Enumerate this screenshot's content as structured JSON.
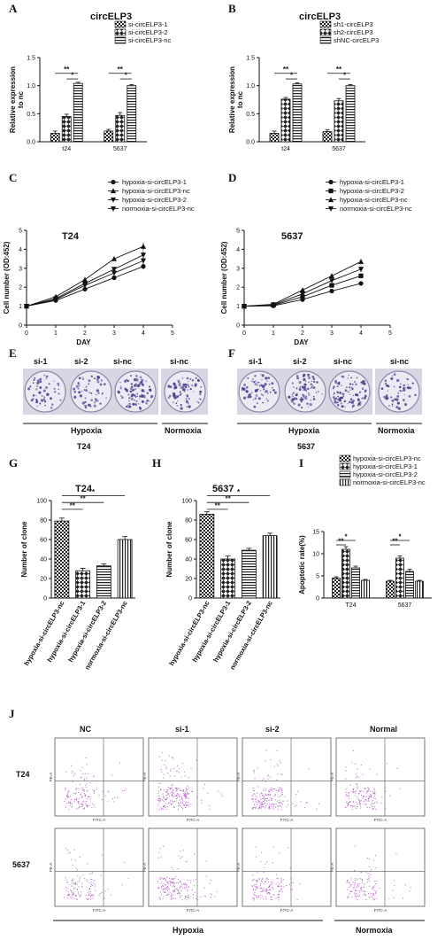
{
  "colors": {
    "ink": "#111111",
    "crystal_violet": "#5b4a9a",
    "flow_dots": "#a23cb7",
    "quad_line": "#555555"
  },
  "chart_data": [
    {
      "panel": "A",
      "type": "bar",
      "title": "circELP3",
      "ylabel": "Relative expression to nc",
      "ylim": [
        0,
        1.5
      ],
      "yticks": [
        "0.0",
        "0.5",
        "1.0",
        "1.5"
      ],
      "categories": [
        "t24",
        "5637"
      ],
      "series": [
        {
          "name": "si-circELP3-1",
          "values": [
            0.15,
            0.19
          ],
          "err": [
            0.04,
            0.03
          ],
          "pattern": "check"
        },
        {
          "name": "si-circELP3-2",
          "values": [
            0.45,
            0.47
          ],
          "err": [
            0.04,
            0.05
          ],
          "pattern": "diamond"
        },
        {
          "name": "si-circELP3-nc",
          "values": [
            1.04,
            1.0
          ],
          "err": [
            0.02,
            0.02
          ],
          "pattern": "hlines"
        }
      ],
      "sig": [
        {
          "cat": 0,
          "from": 0,
          "to": 2,
          "y": 1.22,
          "label": "**"
        },
        {
          "cat": 0,
          "from": 1,
          "to": 2,
          "y": 1.12,
          "label": "*"
        },
        {
          "cat": 1,
          "from": 0,
          "to": 2,
          "y": 1.22,
          "label": "**"
        },
        {
          "cat": 1,
          "from": 1,
          "to": 2,
          "y": 1.12,
          "label": "*"
        }
      ]
    },
    {
      "panel": "B",
      "type": "bar",
      "title": "circELP3",
      "ylabel": "Relative expression to nc",
      "ylim": [
        0,
        1.5
      ],
      "yticks": [
        "0.0",
        "0.5",
        "1.0",
        "1.5"
      ],
      "categories": [
        "t24",
        "5637"
      ],
      "series": [
        {
          "name": "sh1-circELP3",
          "values": [
            0.15,
            0.18
          ],
          "err": [
            0.04,
            0.03
          ],
          "pattern": "check"
        },
        {
          "name": "sh2-circELP3",
          "values": [
            0.76,
            0.73
          ],
          "err": [
            0.03,
            0.04
          ],
          "pattern": "diamond"
        },
        {
          "name": "shNC-circELP3",
          "values": [
            1.03,
            1.0
          ],
          "err": [
            0.02,
            0.02
          ],
          "pattern": "hlines"
        }
      ],
      "sig": [
        {
          "cat": 0,
          "from": 0,
          "to": 2,
          "y": 1.22,
          "label": "**"
        },
        {
          "cat": 0,
          "from": 1,
          "to": 2,
          "y": 1.12,
          "label": "*"
        },
        {
          "cat": 1,
          "from": 0,
          "to": 2,
          "y": 1.22,
          "label": "**"
        },
        {
          "cat": 1,
          "from": 1,
          "to": 2,
          "y": 1.12,
          "label": "*"
        }
      ]
    },
    {
      "panel": "C",
      "type": "line",
      "title": "T24",
      "xlabel": "DAY",
      "ylabel": "Cell number (OD:452)",
      "xlim": [
        0,
        5
      ],
      "ylim": [
        0,
        5
      ],
      "xticks": [
        "0",
        "1",
        "2",
        "3",
        "4",
        "5"
      ],
      "yticks": [
        "0",
        "1",
        "2",
        "3",
        "4",
        "5"
      ],
      "x": [
        0,
        1,
        2,
        3,
        4
      ],
      "series": [
        {
          "name": "hypoxia-si-circELP3-1",
          "marker": "circle",
          "values": [
            1.0,
            1.3,
            1.9,
            2.5,
            3.1
          ],
          "err": [
            0.03,
            0.06,
            0.08,
            0.1,
            0.15
          ]
        },
        {
          "name": "hypoxia-si-circELP3-nc",
          "marker": "tri-up",
          "values": [
            1.0,
            1.5,
            2.4,
            3.5,
            4.15
          ],
          "err": [
            0.03,
            0.06,
            0.08,
            0.1,
            0.2
          ]
        },
        {
          "name": "hypoxia-si-circELP3-2",
          "marker": "tri-down",
          "values": [
            1.0,
            1.35,
            2.1,
            2.75,
            3.4
          ],
          "err": [
            0.03,
            0.06,
            0.08,
            0.1,
            0.18
          ]
        },
        {
          "name": "normoxia-si-circELP3-nc",
          "marker": "tri-down",
          "values": [
            1.0,
            1.4,
            2.2,
            2.95,
            3.7
          ],
          "err": [
            0.03,
            0.06,
            0.08,
            0.1,
            0.2
          ]
        }
      ]
    },
    {
      "panel": "D",
      "type": "line",
      "title": "5637",
      "xlabel": "DAY",
      "ylabel": "Cell number (OD:452)",
      "xlim": [
        0,
        5
      ],
      "ylim": [
        0,
        5
      ],
      "xticks": [
        "0",
        "1",
        "2",
        "3",
        "4",
        "5"
      ],
      "yticks": [
        "0",
        "1",
        "2",
        "3",
        "4",
        "5"
      ],
      "x": [
        0,
        1,
        2,
        3,
        4
      ],
      "series": [
        {
          "name": "hypoxia-si-circELP3-1",
          "marker": "circle",
          "values": [
            1.0,
            1.02,
            1.35,
            1.8,
            2.2
          ],
          "err": [
            0.03,
            0.04,
            0.06,
            0.08,
            0.12
          ]
        },
        {
          "name": "hypoxia-si-circELP3-2",
          "marker": "square",
          "values": [
            1.0,
            1.05,
            1.5,
            2.1,
            2.6
          ],
          "err": [
            0.03,
            0.04,
            0.06,
            0.08,
            0.12
          ]
        },
        {
          "name": "hypoxia-si-circELP3-nc",
          "marker": "tri-up",
          "values": [
            1.0,
            1.1,
            1.85,
            2.6,
            3.35
          ],
          "err": [
            0.03,
            0.04,
            0.06,
            0.1,
            0.15
          ]
        },
        {
          "name": "normoxia-si-circELP3-nc",
          "marker": "tri-down",
          "values": [
            1.0,
            1.08,
            1.65,
            2.35,
            2.95
          ],
          "err": [
            0.03,
            0.04,
            0.06,
            0.1,
            0.15
          ]
        }
      ]
    },
    {
      "panel": "G",
      "type": "bar",
      "title": "T24",
      "ylabel": "Number of clone",
      "ylim": [
        0,
        100
      ],
      "yticks": [
        "0",
        "20",
        "40",
        "60",
        "80",
        "100"
      ],
      "categories": [
        "hypoxia-si-circELP3-nc",
        "hypoxia-si-circELP3-1",
        "hypoxia-si-circELP3-2",
        "normoxia-si-circELP3-nc"
      ],
      "values": [
        79,
        28,
        33,
        60
      ],
      "err": [
        3,
        2.5,
        2,
        3
      ],
      "patterns": [
        "check",
        "diamond",
        "hlines",
        "vlines"
      ],
      "sig": [
        {
          "from": 0,
          "to": 1,
          "y": 91,
          "label": "**"
        },
        {
          "from": 0,
          "to": 2,
          "y": 98,
          "label": "**"
        },
        {
          "from": 0,
          "to": 3,
          "y": 105,
          "label": "*"
        }
      ]
    },
    {
      "panel": "H",
      "type": "bar",
      "title": "5637",
      "ylabel": "Number of clone",
      "ylim": [
        0,
        100
      ],
      "yticks": [
        "0",
        "20",
        "40",
        "60",
        "80",
        "100"
      ],
      "categories": [
        "hypoxia-si-circELP3-nc",
        "hypoxia-si-circELP3-1",
        "hypoxia-si-circELP3-2",
        "normoxia-si-circELP3-nc"
      ],
      "values": [
        86,
        40,
        49,
        64
      ],
      "err": [
        2.5,
        3,
        2,
        2.5
      ],
      "patterns": [
        "check",
        "diamond",
        "hlines",
        "vlines"
      ],
      "sig": [
        {
          "from": 0,
          "to": 1,
          "y": 91,
          "label": "**"
        },
        {
          "from": 0,
          "to": 2,
          "y": 98,
          "label": "**"
        },
        {
          "from": 0,
          "to": 3,
          "y": 105,
          "label": "*"
        }
      ]
    },
    {
      "panel": "I",
      "type": "bar",
      "title": "",
      "ylabel": "Apoptotic rate(%)",
      "ylim": [
        0,
        15
      ],
      "yticks": [
        "0",
        "5",
        "10",
        "15"
      ],
      "categories": [
        "T24",
        "5637"
      ],
      "series": [
        {
          "name": "hypoxia-si-circELP3-nc",
          "values": [
            4.5,
            3.8
          ],
          "err": [
            0.3,
            0.2
          ],
          "pattern": "check"
        },
        {
          "name": "hypoxia-si-circELP3-1",
          "values": [
            11.0,
            9.0
          ],
          "err": [
            0.6,
            0.5
          ],
          "pattern": "diamond"
        },
        {
          "name": "hypoxia-si-circELP3-2",
          "values": [
            6.8,
            6.0
          ],
          "err": [
            0.4,
            0.5
          ],
          "pattern": "hlines"
        },
        {
          "name": "normoxia-si-circELP3-nc",
          "values": [
            4.0,
            3.8
          ],
          "err": [
            0.2,
            0.2
          ],
          "pattern": "vlines"
        }
      ],
      "sig": [
        {
          "cat": 0,
          "from": 0,
          "to": 2,
          "y": 13.0,
          "label": "*"
        },
        {
          "cat": 0,
          "from": 0,
          "to": 1,
          "y": 12.0,
          "label": "**"
        },
        {
          "cat": 1,
          "from": 0,
          "to": 2,
          "y": 13.0,
          "label": "*"
        },
        {
          "cat": 1,
          "from": 0,
          "to": 1,
          "y": 12.0,
          "label": "**"
        }
      ]
    }
  ],
  "panel_labels": [
    "A",
    "B",
    "C",
    "D",
    "E",
    "F",
    "G",
    "H",
    "I",
    "J"
  ],
  "colony_E": {
    "wells": [
      "si-1",
      "si-2",
      "si-nc",
      "si-nc"
    ],
    "groups": [
      "Hypoxia",
      "Normoxia"
    ],
    "cell_line": "T24"
  },
  "colony_F": {
    "wells": [
      "si-1",
      "si-2",
      "si-nc",
      "si-nc"
    ],
    "groups": [
      "Hypoxia",
      "Normoxia"
    ],
    "cell_line": "5637"
  },
  "flow_J": {
    "columns": [
      "NC",
      "si-1",
      "si-2",
      "Normal"
    ],
    "rows": [
      "T24",
      "5637"
    ],
    "groups": [
      "Hypoxia",
      "Normoxia"
    ],
    "axis_x": "FITC-A",
    "axis_y": "PE-A",
    "density": [
      [
        0.55,
        0.85,
        0.75,
        0.6
      ],
      [
        0.5,
        0.7,
        0.6,
        0.5
      ]
    ]
  }
}
